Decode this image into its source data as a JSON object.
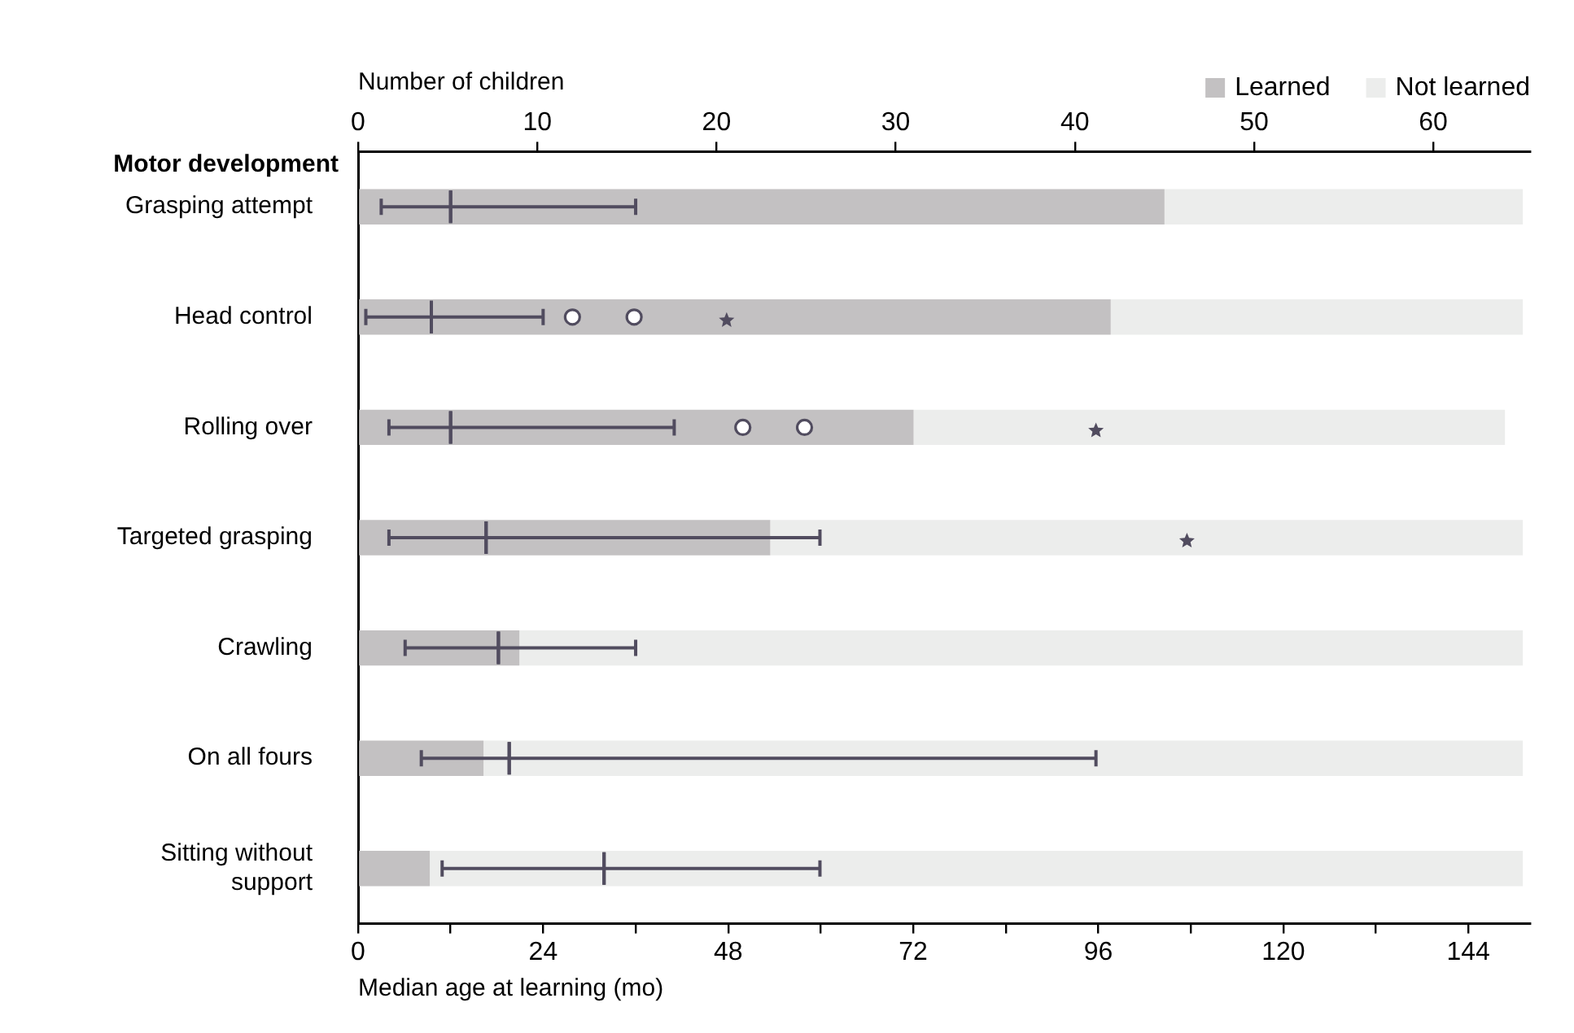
{
  "chart_data": {
    "type": "bar",
    "orientation": "horizontal",
    "stacked": true,
    "legend": "top right",
    "grid": false,
    "xlabel": "Median age at learning (mo)",
    "x2label": "Number of children",
    "ylabel": "Motor development",
    "categories": [
      "Grasping attempt",
      "Head control",
      "Rolling over",
      "Targeted grasping",
      "Crawling",
      "On all fours",
      "Sitting without support"
    ],
    "xlim": [
      0,
      152
    ],
    "xticks": [
      0,
      {
        "value": 12,
        "label": null
      },
      24,
      {
        "value": 36,
        "label": null
      },
      48,
      {
        "value": 60,
        "label": null
      },
      72,
      {
        "value": 84,
        "label": null
      },
      96,
      {
        "value": 108,
        "label": null
      },
      120,
      {
        "value": 132,
        "label": null
      },
      144
    ],
    "x2lim": [
      0,
      65.4
    ],
    "x2ticks": [
      0,
      10,
      20,
      30,
      40,
      50,
      60
    ],
    "series": [
      {
        "name": "Learned",
        "color": "#c3c1c2",
        "axis": "x2",
        "values": [
          45,
          42,
          31,
          23,
          9,
          7,
          4
        ]
      },
      {
        "name": "Not learned",
        "color": "#ecedec",
        "axis": "x2",
        "values": [
          20,
          23,
          33,
          42,
          56,
          58,
          61
        ]
      },
      {
        "type": "box",
        "color": "#514c5f",
        "boxes": [
          {
            "low": 3,
            "q1": 12,
            "median": 12,
            "q3": 12,
            "high": 36
          },
          {
            "low": 1,
            "q1": 9.5,
            "median": 9.5,
            "q3": 9.5,
            "high": 24,
            "outliers": [
              27.8,
              35.8
            ]
          },
          {
            "low": 4,
            "q1": 12,
            "median": 12,
            "q3": 12,
            "high": 41,
            "outliers": [
              49.9,
              57.9
            ]
          },
          {
            "low": 4,
            "q1": 16.6,
            "median": 16.6,
            "q3": 16.6,
            "high": 59.9
          },
          {
            "low": 6.1,
            "q1": 18.2,
            "median": 18.2,
            "q3": 18.2,
            "high": 36
          },
          {
            "low": 8.2,
            "q1": 19.6,
            "median": 19.6,
            "q3": 19.6,
            "high": 95.7
          },
          {
            "low": 10.9,
            "q1": 31.9,
            "median": 31.9,
            "q3": 31.9,
            "high": 59.9
          }
        ]
      },
      {
        "type": "scatter",
        "marker": "star",
        "color": "#514c5f",
        "values": [
          null,
          47.8,
          95.7,
          107.5,
          null,
          null,
          null
        ]
      }
    ]
  }
}
